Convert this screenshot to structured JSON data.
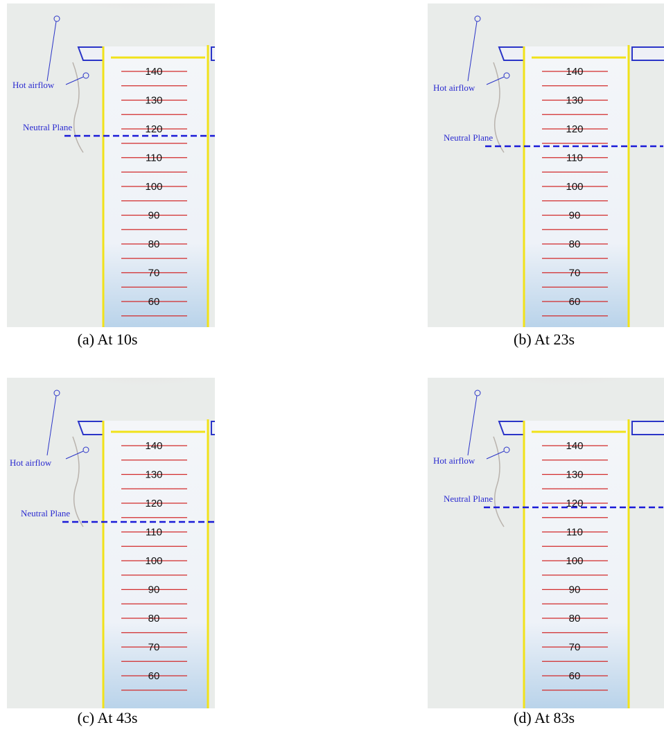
{
  "panels": [
    {
      "caption": "(a) At 10s",
      "hot_airflow": "Hot airflow",
      "neutral_plane": "Neutral Plane"
    },
    {
      "caption": "(b) At 23s",
      "hot_airflow": "Hot airflow",
      "neutral_plane": "Neutral Plane"
    },
    {
      "caption": "(c) At 43s",
      "hot_airflow": "Hot airflow",
      "neutral_plane": "Neutral Plane"
    },
    {
      "caption": "(d) At 83s",
      "hot_airflow": "Hot airflow",
      "neutral_plane": "Neutral Plane"
    }
  ],
  "scale_labels": [
    "140",
    "130",
    "120",
    "110",
    "100",
    "90",
    "80",
    "70",
    "60"
  ]
}
